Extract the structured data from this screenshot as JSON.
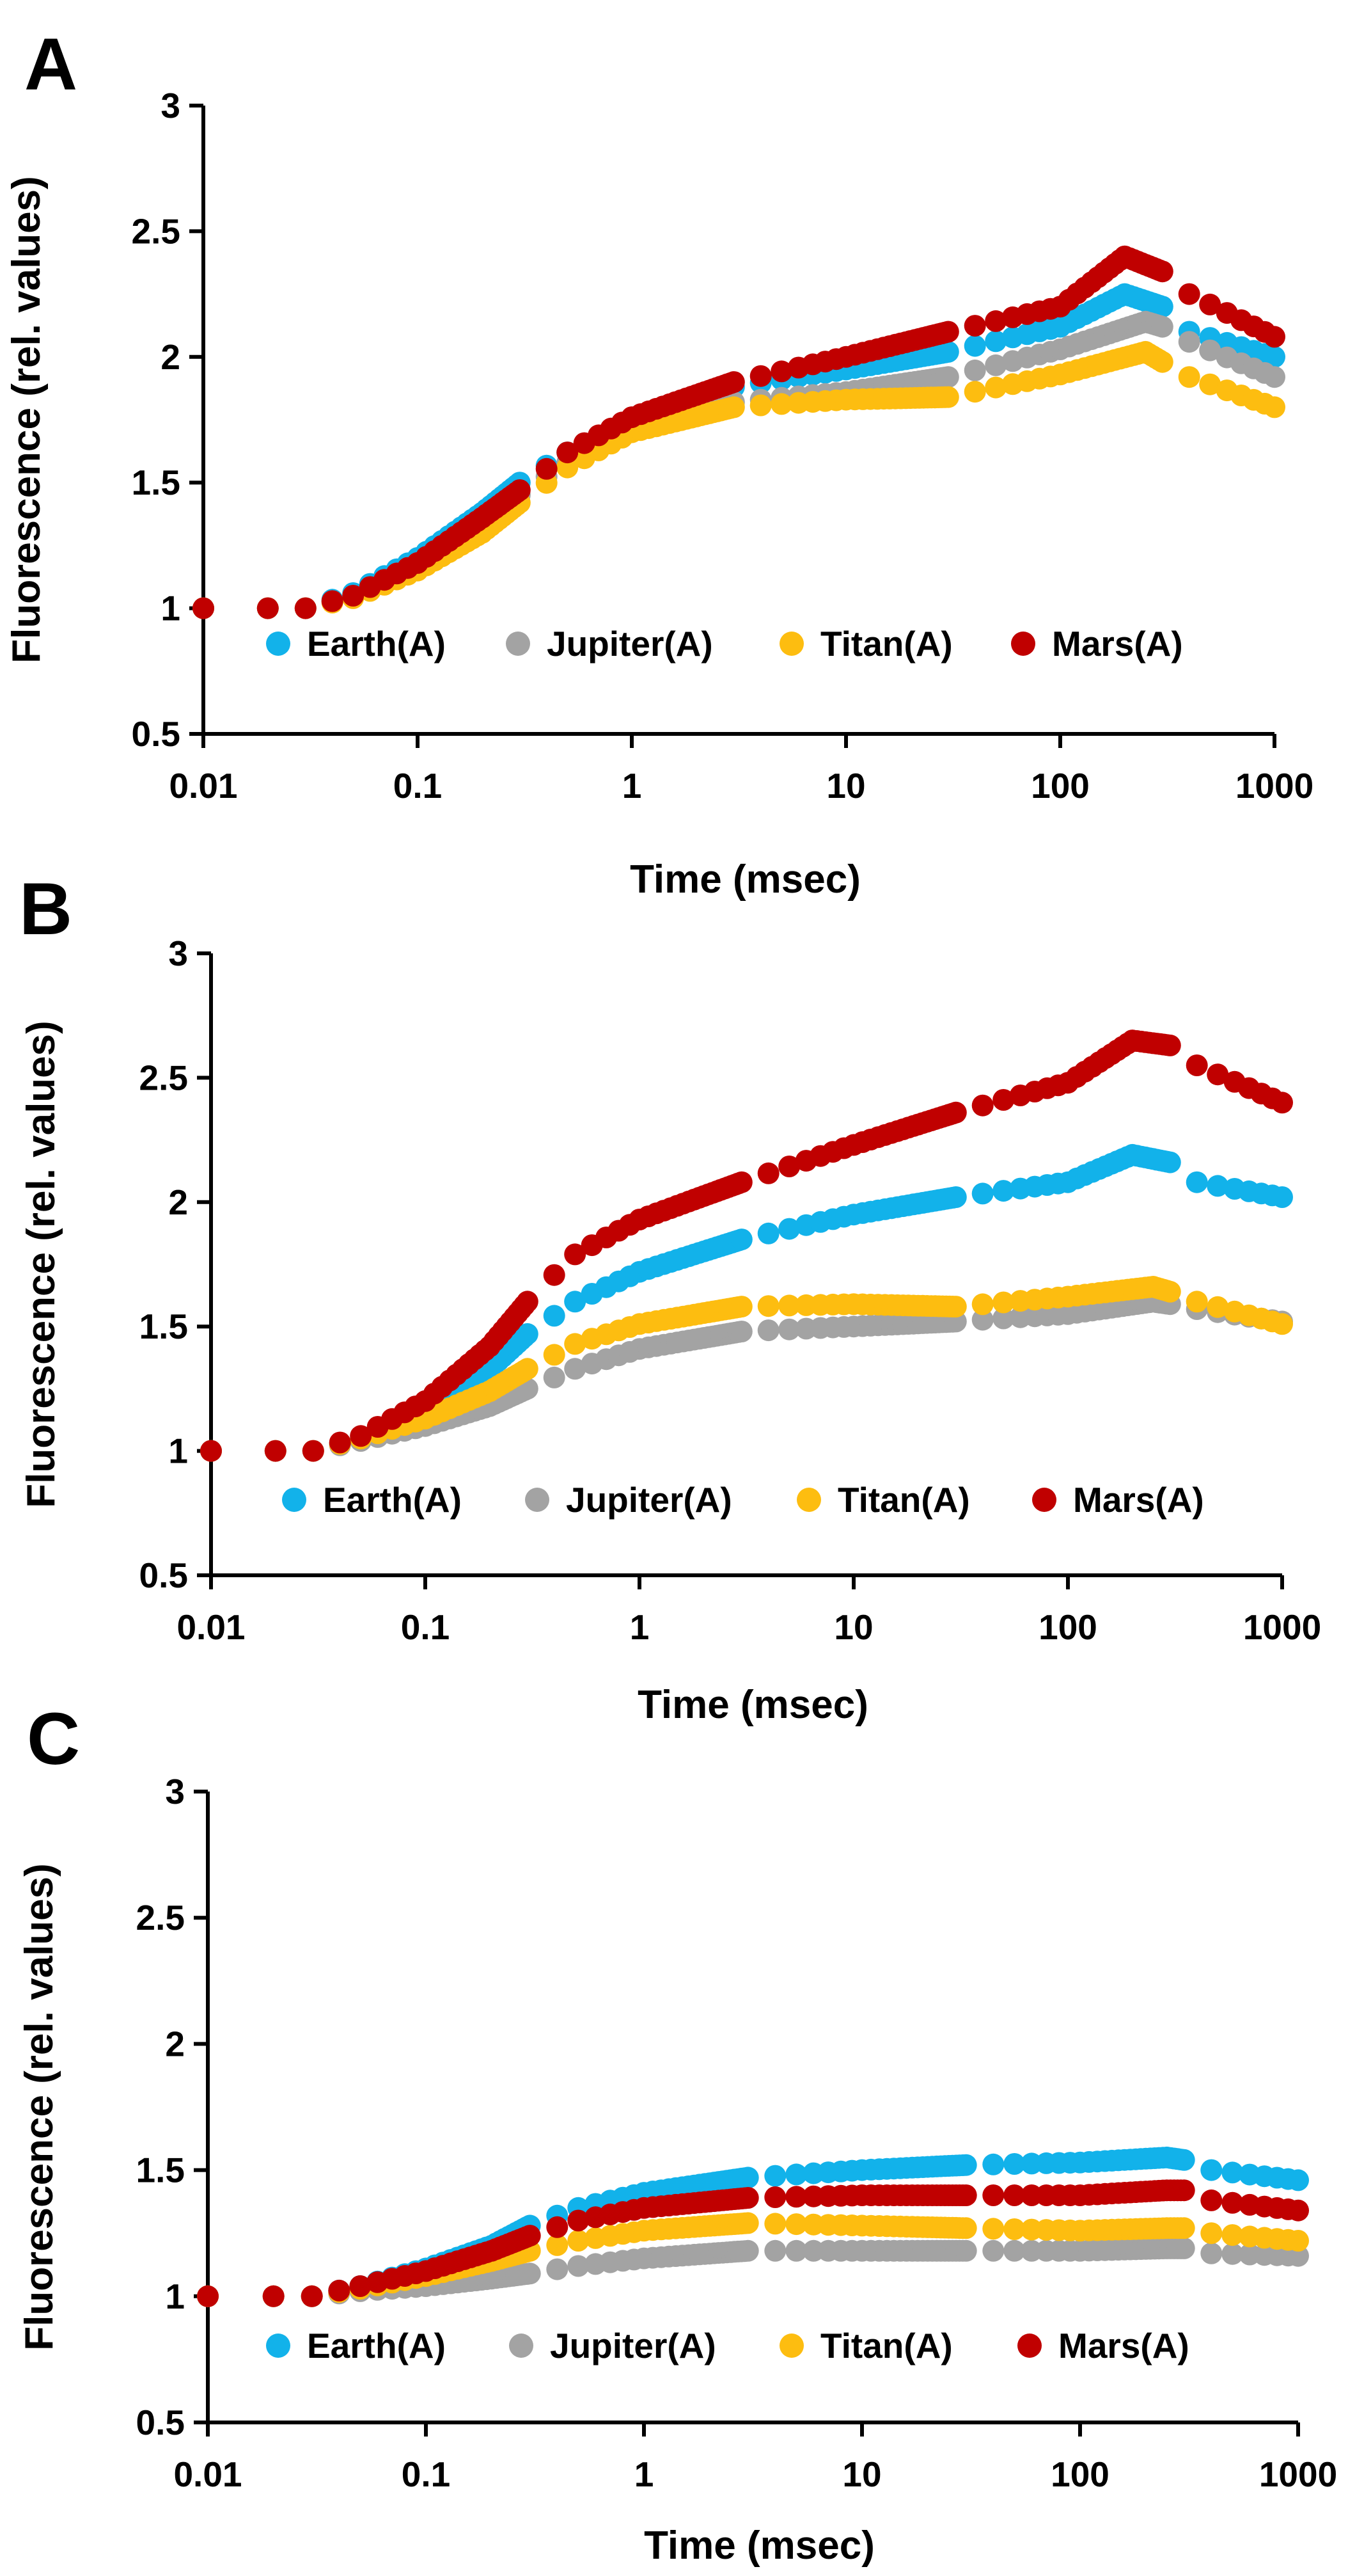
{
  "figure": {
    "colors": {
      "Earth(A)": "#12B2EA",
      "Jupiter(A)": "#A3A3A3",
      "Titan(A)": "#FDBD10",
      "Mars(A)": "#C00000"
    }
  },
  "chart_data": [
    {
      "type": "scatter",
      "panel": "A",
      "xlabel": "Time (msec)",
      "ylabel": "Fluorescence (rel. values)",
      "xscale": "log",
      "xlim": [
        0.01,
        1000
      ],
      "ylim": [
        0.5,
        3
      ],
      "x_ticks": [
        "0.01",
        "0.1",
        "1",
        "10",
        "100",
        "1000"
      ],
      "y_ticks": [
        "0.5",
        "1",
        "1.5",
        "2",
        "2.5",
        "3"
      ],
      "legend": [
        "Earth(A)",
        "Jupiter(A)",
        "Titan(A)",
        "Mars(A)"
      ],
      "legend_position": "lower-center",
      "series": [
        {
          "name": "Earth(A)",
          "keypoints": [
            [
              0.01,
              1
            ],
            [
              0.03,
              1
            ],
            [
              0.05,
              1.06
            ],
            [
              0.1,
              1.2
            ],
            [
              0.2,
              1.38
            ],
            [
              0.3,
              1.5
            ],
            [
              0.5,
              1.62
            ],
            [
              1,
              1.75
            ],
            [
              3,
              1.88
            ],
            [
              10,
              1.95
            ],
            [
              30,
              2.02
            ],
            [
              100,
              2.12
            ],
            [
              200,
              2.25
            ],
            [
              300,
              2.2
            ],
            [
              400,
              2.1
            ],
            [
              1000,
              2.0
            ]
          ]
        },
        {
          "name": "Jupiter(A)",
          "keypoints": [
            [
              0.01,
              1
            ],
            [
              0.03,
              1
            ],
            [
              0.05,
              1.05
            ],
            [
              0.1,
              1.18
            ],
            [
              0.2,
              1.34
            ],
            [
              0.3,
              1.45
            ],
            [
              0.5,
              1.58
            ],
            [
              1,
              1.72
            ],
            [
              3,
              1.82
            ],
            [
              10,
              1.86
            ],
            [
              30,
              1.92
            ],
            [
              100,
              2.03
            ],
            [
              250,
              2.14
            ],
            [
              300,
              2.12
            ],
            [
              400,
              2.06
            ],
            [
              1000,
              1.92
            ]
          ]
        },
        {
          "name": "Titan(A)",
          "keypoints": [
            [
              0.01,
              1
            ],
            [
              0.03,
              1
            ],
            [
              0.05,
              1.04
            ],
            [
              0.1,
              1.15
            ],
            [
              0.2,
              1.3
            ],
            [
              0.3,
              1.42
            ],
            [
              0.5,
              1.56
            ],
            [
              1,
              1.7
            ],
            [
              3,
              1.8
            ],
            [
              10,
              1.83
            ],
            [
              30,
              1.84
            ],
            [
              100,
              1.93
            ],
            [
              250,
              2.02
            ],
            [
              300,
              1.98
            ],
            [
              400,
              1.92
            ],
            [
              1000,
              1.8
            ]
          ]
        },
        {
          "name": "Mars(A)",
          "keypoints": [
            [
              0.01,
              1
            ],
            [
              0.03,
              1
            ],
            [
              0.05,
              1.05
            ],
            [
              0.1,
              1.18
            ],
            [
              0.2,
              1.36
            ],
            [
              0.3,
              1.47
            ],
            [
              0.5,
              1.62
            ],
            [
              1,
              1.76
            ],
            [
              3,
              1.9
            ],
            [
              10,
              2.0
            ],
            [
              30,
              2.1
            ],
            [
              100,
              2.2
            ],
            [
              200,
              2.4
            ],
            [
              300,
              2.34
            ],
            [
              400,
              2.25
            ],
            [
              1000,
              2.08
            ]
          ]
        }
      ]
    },
    {
      "type": "scatter",
      "panel": "B",
      "xlabel": "Time (msec)",
      "ylabel": "Fluorescence (rel. values)",
      "xscale": "log",
      "xlim": [
        0.01,
        1000
      ],
      "ylim": [
        0.5,
        3
      ],
      "x_ticks": [
        "0.01",
        "0.1",
        "1",
        "10",
        "100",
        "1000"
      ],
      "y_ticks": [
        "0.5",
        "1",
        "1.5",
        "2",
        "2.5",
        "3"
      ],
      "legend": [
        "Earth(A)",
        "Jupiter(A)",
        "Titan(A)",
        "Mars(A)"
      ],
      "legend_position": "lower-center",
      "series": [
        {
          "name": "Earth(A)",
          "keypoints": [
            [
              0.01,
              1
            ],
            [
              0.03,
              1
            ],
            [
              0.05,
              1.05
            ],
            [
              0.1,
              1.16
            ],
            [
              0.2,
              1.33
            ],
            [
              0.3,
              1.47
            ],
            [
              0.5,
              1.6
            ],
            [
              1,
              1.72
            ],
            [
              3,
              1.85
            ],
            [
              10,
              1.95
            ],
            [
              30,
              2.02
            ],
            [
              100,
              2.08
            ],
            [
              200,
              2.19
            ],
            [
              300,
              2.16
            ],
            [
              400,
              2.08
            ],
            [
              1000,
              2.02
            ]
          ]
        },
        {
          "name": "Jupiter(A)",
          "keypoints": [
            [
              0.01,
              1
            ],
            [
              0.03,
              1
            ],
            [
              0.05,
              1.04
            ],
            [
              0.1,
              1.1
            ],
            [
              0.2,
              1.18
            ],
            [
              0.3,
              1.25
            ],
            [
              0.5,
              1.33
            ],
            [
              1,
              1.41
            ],
            [
              3,
              1.48
            ],
            [
              10,
              1.5
            ],
            [
              30,
              1.52
            ],
            [
              100,
              1.55
            ],
            [
              250,
              1.6
            ],
            [
              300,
              1.59
            ],
            [
              400,
              1.57
            ],
            [
              1000,
              1.52
            ]
          ]
        },
        {
          "name": "Titan(A)",
          "keypoints": [
            [
              0.01,
              1
            ],
            [
              0.03,
              1
            ],
            [
              0.05,
              1.05
            ],
            [
              0.1,
              1.13
            ],
            [
              0.2,
              1.24
            ],
            [
              0.3,
              1.33
            ],
            [
              0.5,
              1.43
            ],
            [
              1,
              1.51
            ],
            [
              3,
              1.58
            ],
            [
              10,
              1.59
            ],
            [
              30,
              1.58
            ],
            [
              100,
              1.62
            ],
            [
              250,
              1.66
            ],
            [
              300,
              1.64
            ],
            [
              400,
              1.6
            ],
            [
              1000,
              1.51
            ]
          ]
        },
        {
          "name": "Mars(A)",
          "keypoints": [
            [
              0.01,
              1
            ],
            [
              0.03,
              1
            ],
            [
              0.05,
              1.06
            ],
            [
              0.1,
              1.2
            ],
            [
              0.2,
              1.42
            ],
            [
              0.3,
              1.6
            ],
            [
              0.5,
              1.79
            ],
            [
              1,
              1.93
            ],
            [
              3,
              2.08
            ],
            [
              10,
              2.23
            ],
            [
              30,
              2.36
            ],
            [
              100,
              2.48
            ],
            [
              200,
              2.65
            ],
            [
              300,
              2.63
            ],
            [
              400,
              2.55
            ],
            [
              1000,
              2.4
            ]
          ]
        }
      ]
    },
    {
      "type": "scatter",
      "panel": "C",
      "xlabel": "Time (msec)",
      "ylabel": "Fluorescence (rel. values)",
      "xscale": "log",
      "xlim": [
        0.01,
        1000
      ],
      "ylim": [
        0.5,
        3
      ],
      "x_ticks": [
        "0.01",
        "0.1",
        "1",
        "10",
        "100",
        "1000"
      ],
      "y_ticks": [
        "0.5",
        "1",
        "1.5",
        "2",
        "2.5",
        "3"
      ],
      "legend": [
        "Earth(A)",
        "Jupiter(A)",
        "Titan(A)",
        "Mars(A)"
      ],
      "legend_position": "lower-center",
      "series": [
        {
          "name": "Earth(A)",
          "keypoints": [
            [
              0.01,
              1
            ],
            [
              0.03,
              1
            ],
            [
              0.05,
              1.04
            ],
            [
              0.1,
              1.11
            ],
            [
              0.2,
              1.2
            ],
            [
              0.3,
              1.28
            ],
            [
              0.5,
              1.35
            ],
            [
              1,
              1.41
            ],
            [
              3,
              1.47
            ],
            [
              10,
              1.5
            ],
            [
              30,
              1.52
            ],
            [
              100,
              1.53
            ],
            [
              250,
              1.55
            ],
            [
              300,
              1.54
            ],
            [
              400,
              1.5
            ],
            [
              1000,
              1.46
            ]
          ]
        },
        {
          "name": "Jupiter(A)",
          "keypoints": [
            [
              0.01,
              1
            ],
            [
              0.03,
              1
            ],
            [
              0.05,
              1.02
            ],
            [
              0.1,
              1.04
            ],
            [
              0.2,
              1.07
            ],
            [
              0.3,
              1.09
            ],
            [
              0.5,
              1.12
            ],
            [
              1,
              1.15
            ],
            [
              3,
              1.18
            ],
            [
              10,
              1.18
            ],
            [
              30,
              1.18
            ],
            [
              100,
              1.18
            ],
            [
              250,
              1.19
            ],
            [
              300,
              1.19
            ],
            [
              400,
              1.17
            ],
            [
              1000,
              1.16
            ]
          ]
        },
        {
          "name": "Titan(A)",
          "keypoints": [
            [
              0.01,
              1
            ],
            [
              0.03,
              1
            ],
            [
              0.05,
              1.03
            ],
            [
              0.1,
              1.08
            ],
            [
              0.2,
              1.14
            ],
            [
              0.3,
              1.18
            ],
            [
              0.5,
              1.22
            ],
            [
              1,
              1.26
            ],
            [
              3,
              1.29
            ],
            [
              10,
              1.28
            ],
            [
              30,
              1.27
            ],
            [
              100,
              1.26
            ],
            [
              250,
              1.27
            ],
            [
              300,
              1.27
            ],
            [
              400,
              1.25
            ],
            [
              1000,
              1.22
            ]
          ]
        },
        {
          "name": "Mars(A)",
          "keypoints": [
            [
              0.01,
              1
            ],
            [
              0.03,
              1
            ],
            [
              0.05,
              1.04
            ],
            [
              0.1,
              1.1
            ],
            [
              0.2,
              1.18
            ],
            [
              0.3,
              1.24
            ],
            [
              0.5,
              1.3
            ],
            [
              1,
              1.35
            ],
            [
              3,
              1.39
            ],
            [
              10,
              1.4
            ],
            [
              30,
              1.4
            ],
            [
              100,
              1.4
            ],
            [
              250,
              1.42
            ],
            [
              300,
              1.42
            ],
            [
              400,
              1.38
            ],
            [
              1000,
              1.34
            ]
          ]
        }
      ]
    }
  ]
}
